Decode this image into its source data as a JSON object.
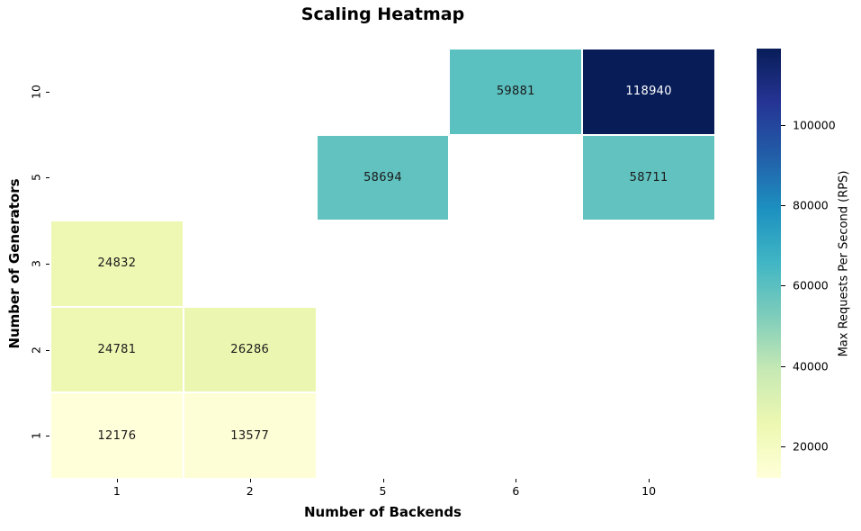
{
  "title": "Scaling Heatmap",
  "chart_data": {
    "type": "heatmap",
    "title": "Scaling Heatmap",
    "xlabel": "Number of Backends",
    "ylabel": "Number of Generators",
    "x_categories": [
      "1",
      "2",
      "5",
      "6",
      "10"
    ],
    "y_categories": [
      "10",
      "5",
      "3",
      "2",
      "1"
    ],
    "matrix": [
      [
        null,
        null,
        null,
        59881,
        118940
      ],
      [
        null,
        null,
        58694,
        null,
        58711
      ],
      [
        24832,
        null,
        null,
        null,
        null
      ],
      [
        24781,
        26286,
        null,
        null,
        null
      ],
      [
        12176,
        13577,
        null,
        null,
        null
      ]
    ],
    "cells": [
      {
        "generators": "10",
        "backends": "6",
        "value": 59881
      },
      {
        "generators": "10",
        "backends": "10",
        "value": 118940
      },
      {
        "generators": "5",
        "backends": "5",
        "value": 58694
      },
      {
        "generators": "5",
        "backends": "10",
        "value": 58711
      },
      {
        "generators": "3",
        "backends": "1",
        "value": 24832
      },
      {
        "generators": "2",
        "backends": "1",
        "value": 24781
      },
      {
        "generators": "2",
        "backends": "2",
        "value": 26286
      },
      {
        "generators": "1",
        "backends": "1",
        "value": 12176
      },
      {
        "generators": "1",
        "backends": "2",
        "value": 13577
      }
    ],
    "missing_cells_blank": true,
    "grid_line_color": "#ffffff",
    "colorbar": {
      "label": "Max Requests Per Second (RPS)",
      "ticks": [
        20000,
        40000,
        60000,
        80000,
        100000
      ],
      "vmin": 12176,
      "vmax": 118940
    },
    "colormap": {
      "name": "YlGnBu",
      "stops": [
        {
          "pos": 0.0,
          "color": "#ffffd9"
        },
        {
          "pos": 0.125,
          "color": "#edf8b1"
        },
        {
          "pos": 0.25,
          "color": "#c7e9b4"
        },
        {
          "pos": 0.375,
          "color": "#7fcdbb"
        },
        {
          "pos": 0.5,
          "color": "#41b6c4"
        },
        {
          "pos": 0.625,
          "color": "#1d91c0"
        },
        {
          "pos": 0.75,
          "color": "#225ea8"
        },
        {
          "pos": 0.875,
          "color": "#253494"
        },
        {
          "pos": 1.0,
          "color": "#081d58"
        }
      ]
    },
    "annotation_text_colors": {
      "light_cells": "#1a1a1a",
      "dark_cells": "#ffffff"
    }
  }
}
